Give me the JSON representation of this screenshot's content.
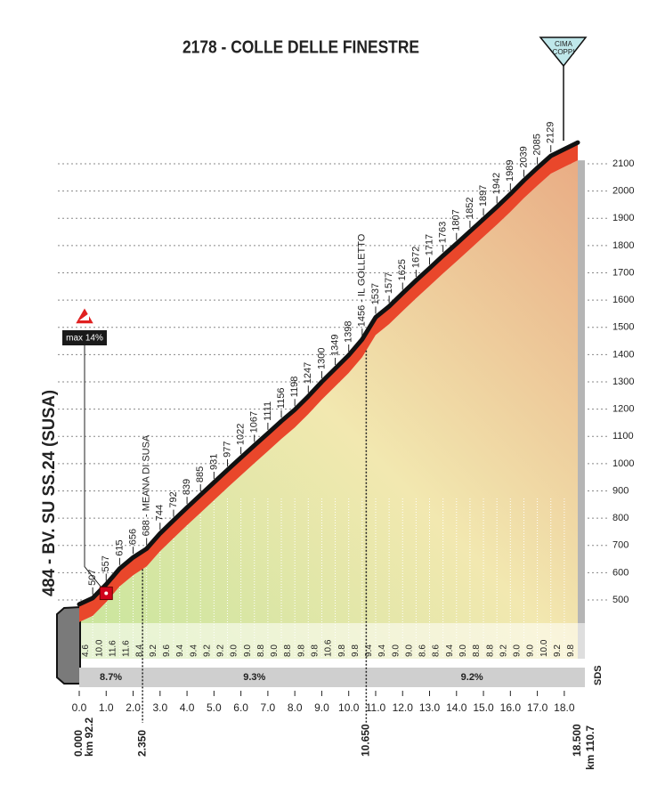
{
  "chart_data": {
    "type": "climb-profile",
    "title": "2178 - COLLE DELLE FINESTRE",
    "badge": [
      "CIMA",
      "COPPI"
    ],
    "start_label": "484 - BV. SU SS.24 (SUSA)",
    "max_gradient": {
      "value": 14,
      "label": "max 14%",
      "km": 1.0
    },
    "xlim": [
      0,
      18.5
    ],
    "ylim": [
      500,
      2100
    ],
    "yticks": [
      500,
      600,
      700,
      800,
      900,
      1000,
      1100,
      1200,
      1300,
      1400,
      1500,
      1600,
      1700,
      1800,
      1900,
      2000,
      2100
    ],
    "xticks": [
      {
        "value": 0,
        "label": "0.0"
      },
      {
        "value": 1,
        "label": "1.0"
      },
      {
        "value": 2,
        "label": "2.0"
      },
      {
        "value": 3,
        "label": "3.0"
      },
      {
        "value": 4,
        "label": "4.0"
      },
      {
        "value": 5,
        "label": "5.0"
      },
      {
        "value": 6,
        "label": "6.0"
      },
      {
        "value": 7,
        "label": "7.0"
      },
      {
        "value": 8,
        "label": "8.0"
      },
      {
        "value": 9,
        "label": "9.0"
      },
      {
        "value": 10,
        "label": "10.0"
      },
      {
        "value": 11,
        "label": "11.0"
      },
      {
        "value": 12,
        "label": "12.0"
      },
      {
        "value": 13,
        "label": "13.0"
      },
      {
        "value": 14,
        "label": "14.0"
      },
      {
        "value": 15,
        "label": "15.0"
      },
      {
        "value": 16,
        "label": "16.0"
      },
      {
        "value": 17,
        "label": "17.0"
      },
      {
        "value": 18,
        "label": "18.0"
      }
    ],
    "profile": {
      "km": [
        0,
        0.5,
        1,
        1.5,
        2,
        2.5,
        3,
        3.5,
        4,
        4.5,
        5,
        5.5,
        6,
        6.5,
        7,
        7.5,
        8,
        8.5,
        9,
        9.5,
        10,
        10.5,
        11,
        11.5,
        12,
        12.5,
        13,
        13.5,
        14,
        14.5,
        15,
        15.5,
        16,
        16.5,
        17,
        17.5,
        18.5
      ],
      "altitude": [
        484,
        507,
        557,
        615,
        656,
        688,
        744,
        792,
        839,
        885,
        931,
        977,
        1022,
        1067,
        1111,
        1156,
        1198,
        1247,
        1300,
        1349,
        1398,
        1456,
        1537,
        1577,
        1625,
        1672,
        1717,
        1763,
        1807,
        1852,
        1897,
        1942,
        1989,
        2039,
        2085,
        2129,
        2178
      ],
      "value_labels": [
        null,
        "507",
        "557",
        "615",
        "656",
        "688 - MEANA DI SUSA",
        "744",
        "792",
        "839",
        "885",
        "931",
        "977",
        "1022",
        "1067",
        "1111",
        "1156",
        "1198",
        "1247",
        "1300",
        "1349",
        "1398",
        "1456 - IL GOLLETTO",
        "1537",
        "1577",
        "1625",
        "1672",
        "1717",
        "1763",
        "1807",
        "1852",
        "1897",
        "1942",
        "1989",
        "2039",
        "2085",
        "2129",
        null
      ]
    },
    "gradients": [
      4.6,
      10.0,
      11.6,
      11.6,
      8.4,
      9.2,
      9.6,
      9.4,
      9.4,
      9.2,
      9.2,
      9.0,
      9.0,
      8.8,
      9.0,
      8.8,
      9.8,
      9.8,
      10.6,
      9.8,
      9.8,
      9.4,
      9.4,
      9.0,
      9.0,
      8.6,
      8.6,
      9.4,
      9.0,
      8.8,
      8.8,
      9.2,
      9.0,
      9.0,
      10.0,
      9.2,
      9.8
    ],
    "gradient_labels": [
      "4.6",
      "10.0",
      "11.6",
      "11.6",
      "8.4",
      "9.2",
      "9.6",
      "9.4",
      "9.4",
      "9.2",
      "9.2",
      "9.0",
      "9.0",
      "8.8",
      "9.0",
      "8.8",
      "9.8",
      "9.8",
      "10.6",
      "9.8",
      "9.8",
      "9.4",
      "9.4",
      "9.0",
      "9.0",
      "8.6",
      "8.6",
      "9.4",
      "9.0",
      "8.8",
      "8.8",
      "9.2",
      "9.0",
      "9.0",
      "10.0",
      "9.2",
      "9.8"
    ],
    "km_markers": [
      {
        "value": 0,
        "label": "0.000"
      },
      {
        "value": 2.35,
        "label": "2.350"
      },
      {
        "value": 10.65,
        "label": "10.650"
      },
      {
        "value": 18.5,
        "label": "18.500"
      }
    ],
    "segments": [
      {
        "value": 8.7,
        "label": "8.7%"
      },
      {
        "value": 9.3,
        "label": "9.3%"
      },
      {
        "value": 9.2,
        "label": "9.2%"
      }
    ],
    "race_km": [
      "km 92.2",
      "km 110.7"
    ],
    "logo": "SDS"
  }
}
